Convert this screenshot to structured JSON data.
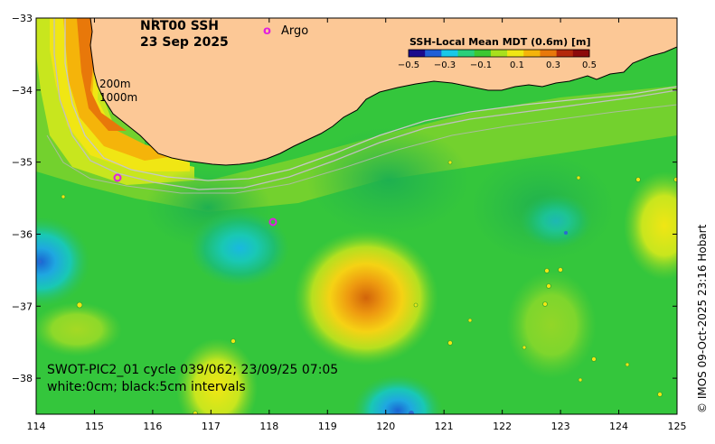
{
  "map": {
    "title_line1": "NRT00 SSH",
    "title_line2": "23 Sep 2025",
    "legend_argo_symbol": "o",
    "legend_argo_label": "Argo",
    "contour_label_200": "200m",
    "contour_label_1000": "1000m",
    "swot_line1": "SWOT-PIC2_01 cycle 039/062; 23/09/25 07:05",
    "swot_line2": "white:0cm; black:5cm intervals",
    "credit": "© IMOS 09-Oct-2025 23:16 Hobart",
    "colorbar": {
      "title": "SSH-Local Mean MDT (0.6m) [m]",
      "ticks": [
        "−0.5",
        "−0.3",
        "−0.1",
        "0.1",
        "0.3",
        "0.5"
      ],
      "range": [
        -0.5,
        0.5
      ],
      "colors": [
        "#1a0a8c",
        "#1f5fd6",
        "#19c8e8",
        "#2ad07a",
        "#3cc832",
        "#a8e01e",
        "#f0e614",
        "#f5b40a",
        "#e8780a",
        "#b4280a",
        "#8c0a0a"
      ]
    },
    "x_ticks": [
      "114",
      "115",
      "116",
      "117",
      "118",
      "119",
      "120",
      "121",
      "122",
      "123",
      "124",
      "125"
    ],
    "y_ticks": [
      "−33",
      "−34",
      "−35",
      "−36",
      "−37",
      "−38"
    ],
    "lon_range": [
      114,
      125
    ],
    "lat_range": [
      -38.5,
      -33
    ],
    "colors": {
      "land": "#fcc896",
      "field_base": "#34c63c",
      "warm_core": "#e87d0c",
      "cool_core": "#1fb4d8",
      "argo": "#e020e0"
    }
  }
}
